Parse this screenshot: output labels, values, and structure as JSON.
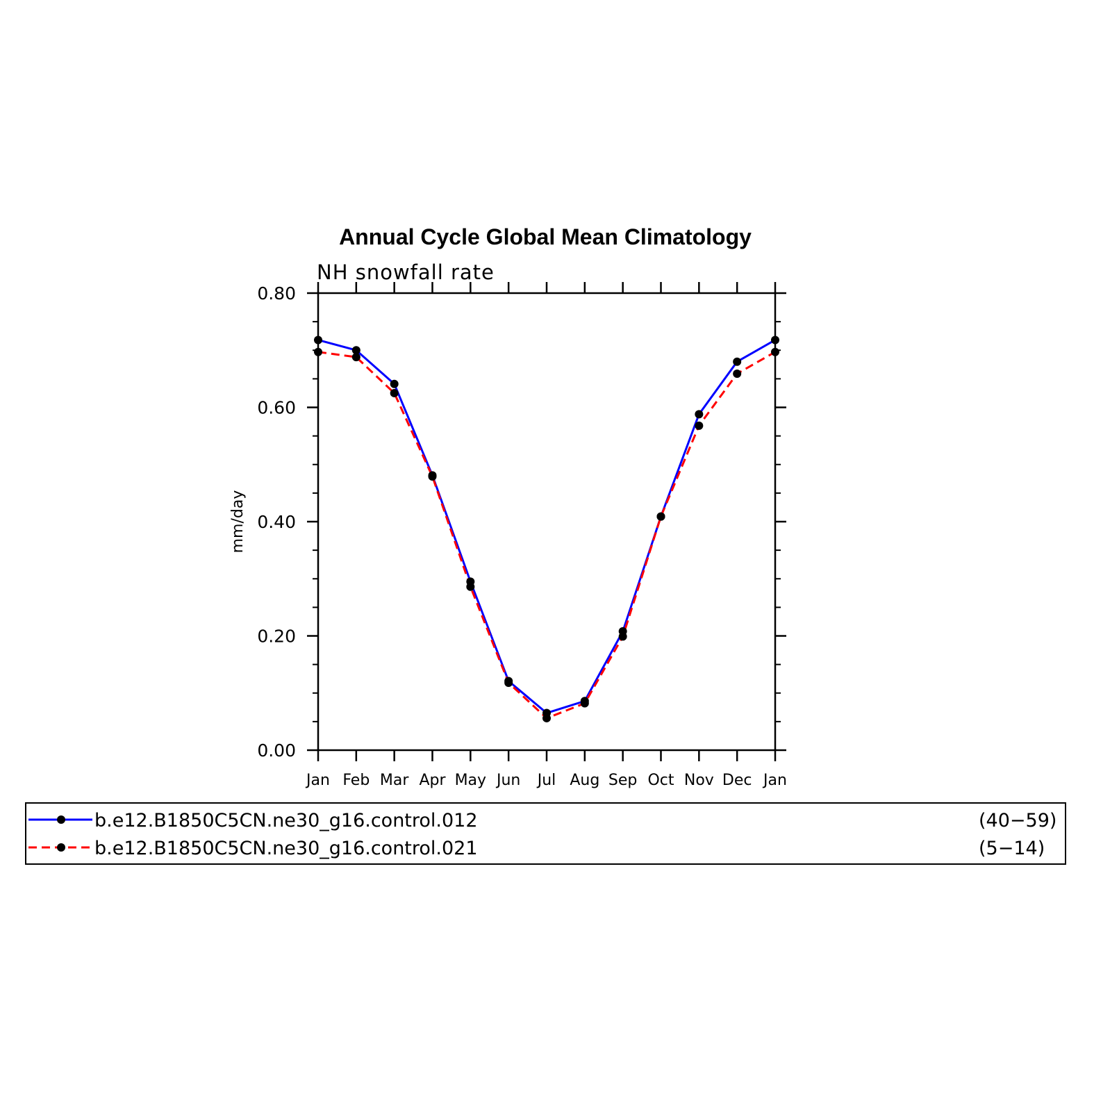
{
  "chart_data": {
    "type": "line",
    "title": "Annual Cycle Global Mean Climatology",
    "subtitle": "NH snowfall rate",
    "xlabel": "",
    "ylabel": "mm/day",
    "categories": [
      "Jan",
      "Feb",
      "Mar",
      "Apr",
      "May",
      "Jun",
      "Jul",
      "Aug",
      "Sep",
      "Oct",
      "Nov",
      "Dec",
      "Jan"
    ],
    "ylim": [
      0.0,
      0.8
    ],
    "yticks": [
      "0.00",
      "0.20",
      "0.40",
      "0.60",
      "0.80"
    ],
    "grid": false,
    "legend_position": "bottom",
    "series": [
      {
        "name": "b.e12.B1850C5CN.ne30_g16.control.012",
        "years": "(40−59)",
        "color": "#0000ff",
        "style": "solid",
        "values": [
          0.718,
          0.7,
          0.641,
          0.481,
          0.295,
          0.121,
          0.065,
          0.086,
          0.208,
          0.409,
          0.588,
          0.68,
          0.718
        ]
      },
      {
        "name": "b.e12.B1850C5CN.ne30_g16.control.021",
        "years": "(5−14)",
        "color": "#ff0000",
        "style": "dashed",
        "values": [
          0.697,
          0.688,
          0.625,
          0.479,
          0.286,
          0.118,
          0.056,
          0.082,
          0.199,
          0.409,
          0.568,
          0.659,
          0.697
        ]
      }
    ]
  }
}
